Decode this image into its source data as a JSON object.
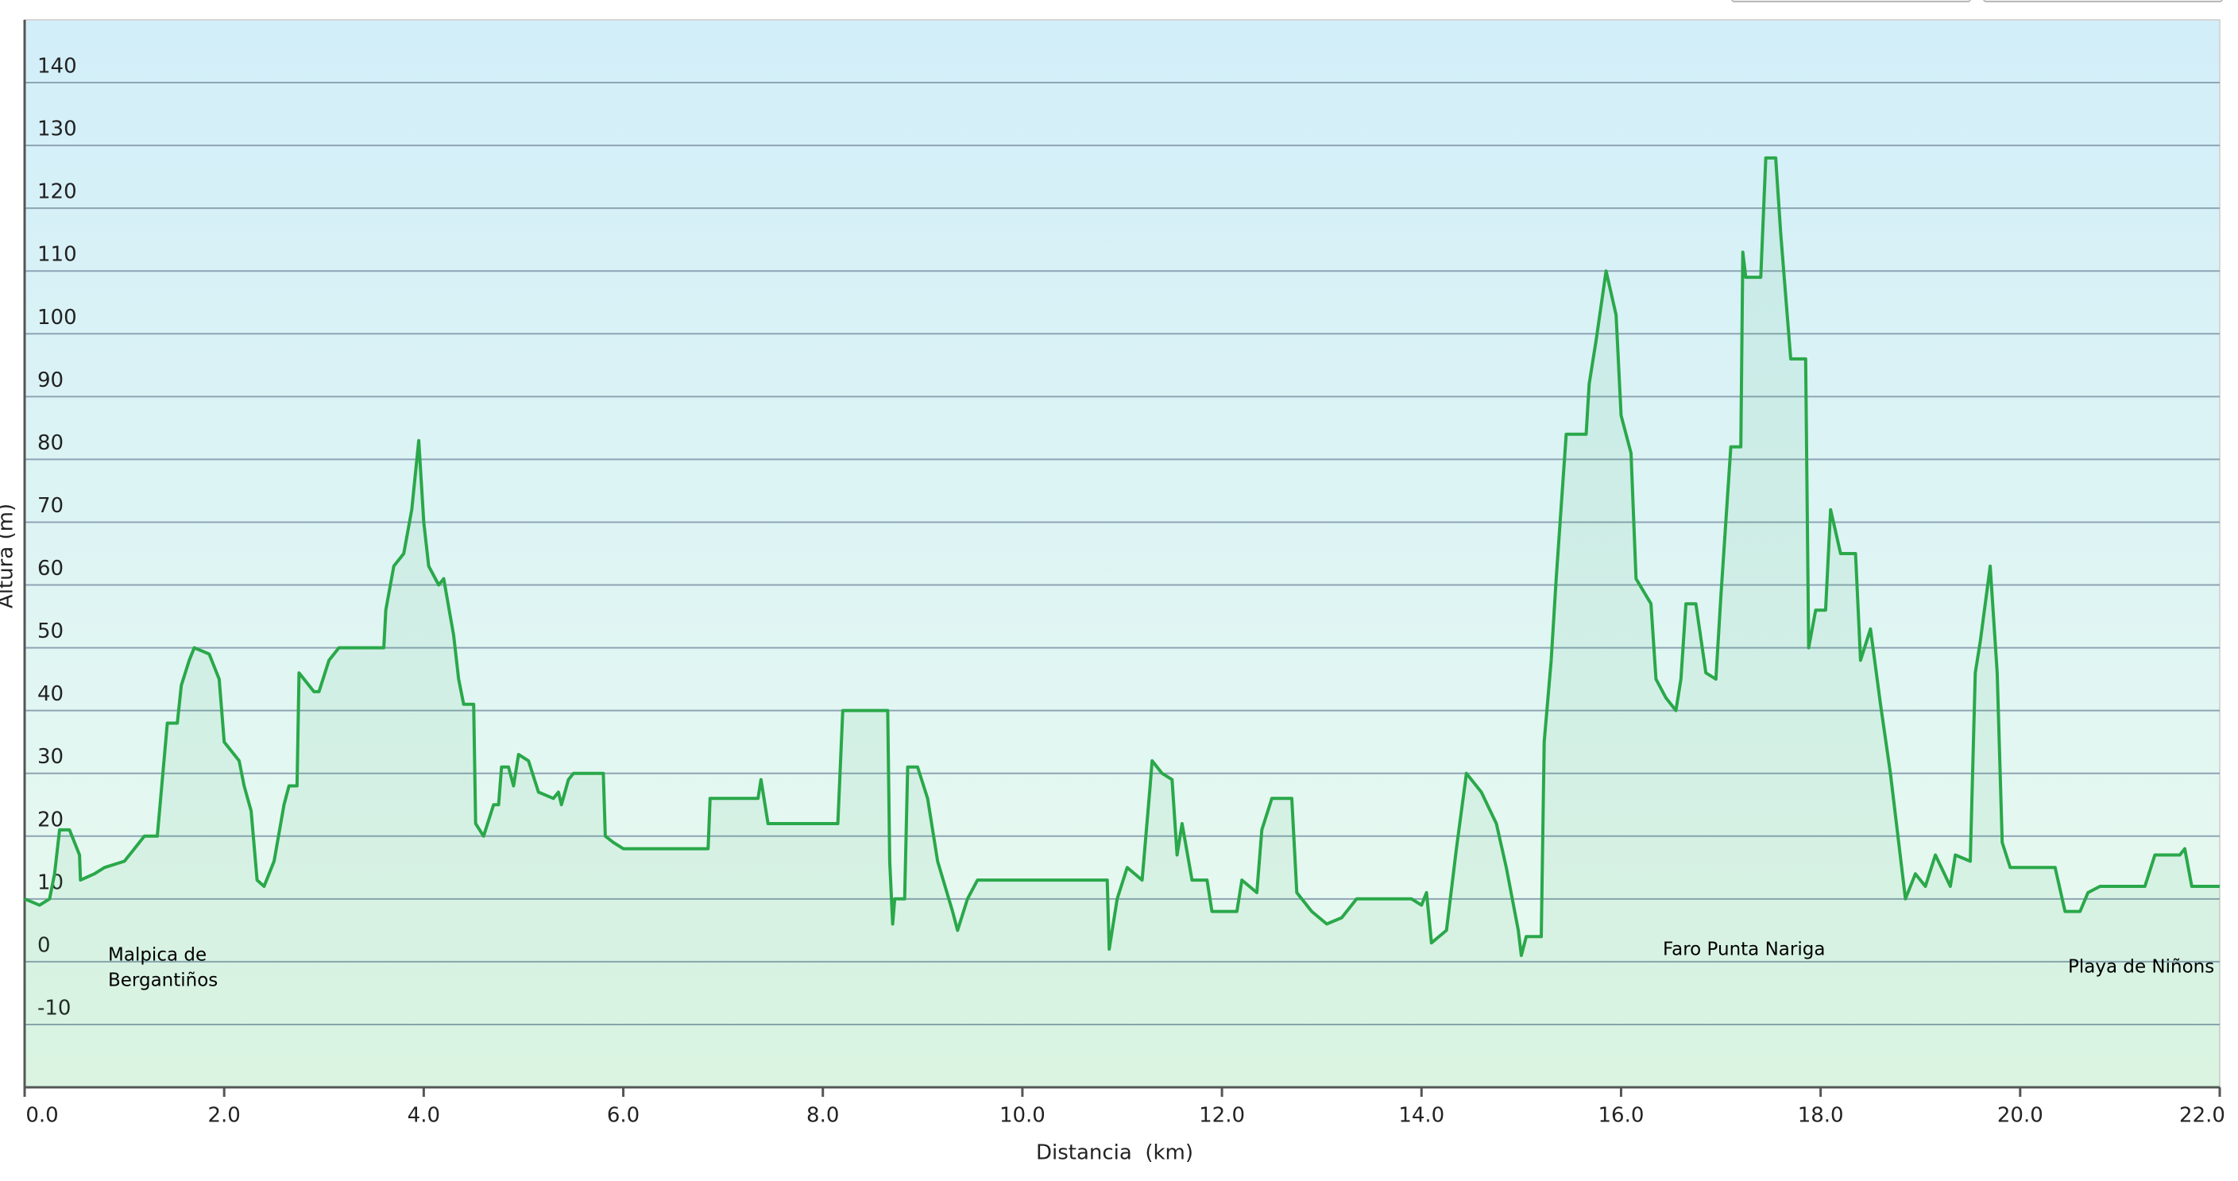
{
  "chart_data": {
    "type": "line",
    "x_label": "Distancia  (km)",
    "y_label": "Altura (m)",
    "annotations": [
      [
        "Malpica de",
        "Bergantiños"
      ],
      [
        "Faro Punta Nariga"
      ],
      [
        "Playa de Niñons"
      ]
    ],
    "xlim": [
      0,
      22
    ],
    "ylim": [
      -20,
      150
    ],
    "xticks": [
      {
        "value": 0,
        "label": "0.0"
      },
      {
        "value": 2,
        "label": "2.0"
      },
      {
        "value": 4,
        "label": "4.0"
      },
      {
        "value": 6,
        "label": "6.0"
      },
      {
        "value": 8,
        "label": "8.0"
      },
      {
        "value": 10,
        "label": "10.0"
      },
      {
        "value": 12,
        "label": "12.0"
      },
      {
        "value": 14,
        "label": "14.0"
      },
      {
        "value": 16,
        "label": "16.0"
      },
      {
        "value": 18,
        "label": "18.0"
      },
      {
        "value": 20,
        "label": "20.0"
      },
      {
        "value": 22,
        "label": "22.0"
      }
    ],
    "yticks": [
      -10,
      0,
      10,
      20,
      30,
      40,
      50,
      60,
      70,
      80,
      90,
      100,
      110,
      120,
      130,
      140
    ],
    "grid": true,
    "x": [
      0,
      0.15,
      0.25,
      0.3,
      0.35,
      0.45,
      0.55,
      0.56,
      0.7,
      0.8,
      1.0,
      1.1,
      1.2,
      1.33,
      1.43,
      1.53,
      1.57,
      1.65,
      1.7,
      1.85,
      1.95,
      2.0,
      2.15,
      2.2,
      2.27,
      2.33,
      2.4,
      2.5,
      2.6,
      2.65,
      2.73,
      2.75,
      2.9,
      2.95,
      3.05,
      3.15,
      3.6,
      3.62,
      3.7,
      3.8,
      3.88,
      3.95,
      4.0,
      4.05,
      4.15,
      4.2,
      4.3,
      4.35,
      4.4,
      4.5,
      4.52,
      4.6,
      4.7,
      4.75,
      4.78,
      4.85,
      4.9,
      4.95,
      5.05,
      5.15,
      5.3,
      5.35,
      5.38,
      5.45,
      5.5,
      5.8,
      5.82,
      5.9,
      6.0,
      6.85,
      6.87,
      7.35,
      7.38,
      7.45,
      8.15,
      8.2,
      8.65,
      8.67,
      8.7,
      8.72,
      8.82,
      8.85,
      8.95,
      9.05,
      9.15,
      9.3,
      9.35,
      9.45,
      9.55,
      10.85,
      10.87,
      10.95,
      11.05,
      11.2,
      11.28,
      11.3,
      11.4,
      11.5,
      11.55,
      11.6,
      11.7,
      11.85,
      11.9,
      12.15,
      12.2,
      12.35,
      12.4,
      12.5,
      12.7,
      12.75,
      12.9,
      13.05,
      13.2,
      13.35,
      13.9,
      14.0,
      14.05,
      14.1,
      14.25,
      14.35,
      14.45,
      14.6,
      14.75,
      14.85,
      14.97,
      15.0,
      15.05,
      15.2,
      15.23,
      15.3,
      15.35,
      15.45,
      15.65,
      15.68,
      15.75,
      15.85,
      15.95,
      16.0,
      16.1,
      16.15,
      16.3,
      16.35,
      16.45,
      16.55,
      16.6,
      16.65,
      16.75,
      16.85,
      16.95,
      17.0,
      17.1,
      17.2,
      17.22,
      17.25,
      17.4,
      17.45,
      17.55,
      17.6,
      17.7,
      17.85,
      17.88,
      17.95,
      18.05,
      18.1,
      18.2,
      18.35,
      18.4,
      18.5,
      18.6,
      18.7,
      18.85,
      18.95,
      19.05,
      19.15,
      19.3,
      19.35,
      19.5,
      19.55,
      19.6,
      19.7,
      19.77,
      19.82,
      19.9,
      20.35,
      20.45,
      20.6,
      20.68,
      20.8,
      21.25,
      21.35,
      21.6,
      21.65,
      21.72,
      22.0
    ],
    "series": [
      {
        "color": "#2aa84a",
        "values": [
          10,
          9,
          10,
          14,
          21,
          21,
          17,
          13,
          14,
          15,
          16,
          18,
          20,
          20,
          38,
          38,
          44,
          48,
          50,
          49,
          45,
          35,
          32,
          28,
          24,
          13,
          12,
          16,
          25,
          28,
          28,
          46,
          43,
          43,
          48,
          50,
          50,
          56,
          63,
          65,
          72,
          83,
          70,
          63,
          60,
          61,
          52,
          45,
          41,
          41,
          22,
          20,
          25,
          25,
          31,
          31,
          28,
          33,
          32,
          27,
          26,
          27,
          25,
          29,
          30,
          30,
          20,
          19,
          18,
          18,
          26,
          26,
          29,
          22,
          22,
          40,
          40,
          16,
          6,
          10,
          10,
          31,
          31,
          26,
          16,
          8,
          5,
          10,
          13,
          13,
          2,
          10,
          15,
          13,
          28,
          32,
          30,
          29,
          17,
          22,
          13,
          13,
          8,
          8,
          13,
          11,
          21,
          26,
          26,
          11,
          8,
          6,
          7,
          10,
          10,
          9,
          11,
          3,
          5,
          18,
          30,
          27,
          22,
          15,
          5,
          1,
          4,
          4,
          35,
          48,
          61,
          84,
          84,
          92,
          99,
          110,
          103,
          87,
          81,
          61,
          57,
          45,
          42,
          40,
          45,
          57,
          57,
          46,
          45,
          58,
          82,
          82,
          113,
          109,
          109,
          128,
          128,
          116,
          96,
          96,
          50,
          56,
          56,
          72,
          65,
          65,
          48,
          53,
          41,
          30,
          10,
          14,
          12,
          17,
          12,
          17,
          16,
          46,
          51,
          63,
          46,
          19,
          15,
          15,
          8,
          8,
          11,
          12,
          12,
          17,
          17,
          18,
          12,
          12
        ]
      }
    ]
  }
}
